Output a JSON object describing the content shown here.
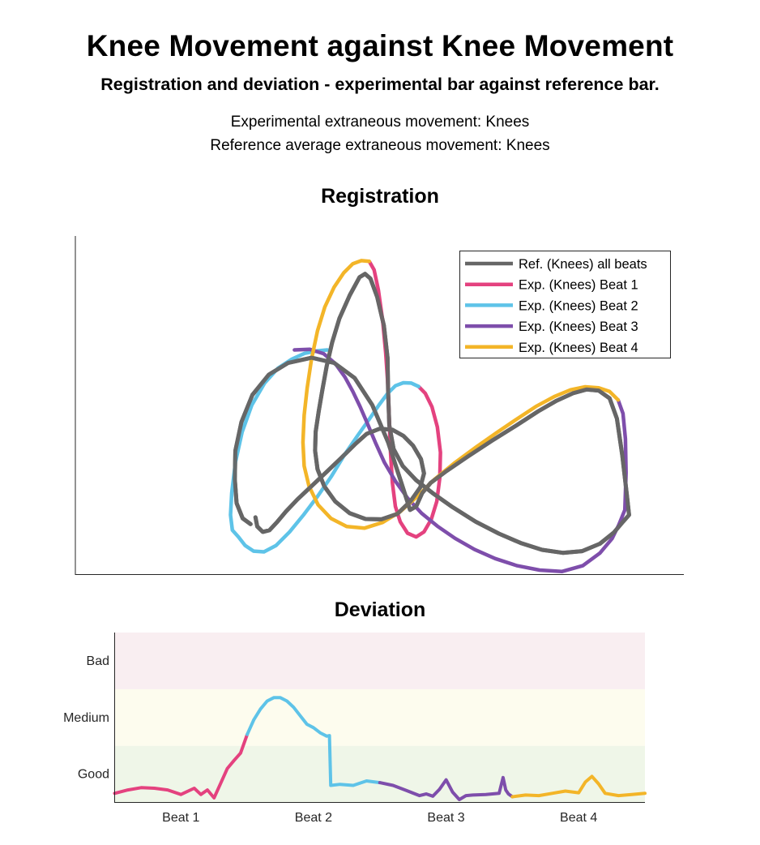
{
  "figure": {
    "title": "Knee Movement against Knee Movement",
    "subtitle": "Registration and deviation - experimental bar against reference bar.",
    "info_experimental": "Experimental extraneous movement: Knees",
    "info_reference": "Reference average extraneous movement: Knees"
  },
  "colors": {
    "reference": "#666666",
    "beat1": "#E4427F",
    "beat2": "#5EC3E8",
    "beat3": "#7E4EAB",
    "beat4": "#F3B528",
    "band_bad": "#F9EEF1",
    "band_medium": "#FDFCEE",
    "band_good": "#EFF6E8"
  },
  "chart_data": [
    {
      "type": "line",
      "title": "Registration",
      "axes_ticks": false,
      "grid": false,
      "legend_position": "top-right",
      "legend": [
        "Ref. (Knees) all beats",
        "Exp. (Knees) Beat 1",
        "Exp. (Knees) Beat 2",
        "Exp. (Knees) Beat 3",
        "Exp. (Knees) Beat 4"
      ],
      "xlim": [
        0,
        100
      ],
      "ylim": [
        0,
        100
      ],
      "series": [
        {
          "name": "Ref. (Knees) all beats",
          "color_key": "reference",
          "points": [
            [
              29.6,
              16.8
            ],
            [
              29.9,
              14.1
            ],
            [
              30.8,
              12.5
            ],
            [
              31.9,
              13.0
            ],
            [
              33.2,
              15.5
            ],
            [
              34.6,
              18.5
            ],
            [
              36.5,
              22.1
            ],
            [
              38.8,
              26.0
            ],
            [
              41.2,
              30.1
            ],
            [
              43.6,
              34.2
            ],
            [
              45.9,
              38.3
            ],
            [
              47.9,
              41.5
            ],
            [
              50.0,
              43.0
            ],
            [
              52.1,
              42.7
            ],
            [
              53.9,
              40.9
            ],
            [
              55.5,
              38.0
            ],
            [
              56.8,
              34.0
            ],
            [
              57.3,
              29.8
            ],
            [
              56.7,
              25.7
            ],
            [
              55.1,
              21.6
            ],
            [
              52.9,
              17.8
            ],
            [
              50.3,
              16.2
            ],
            [
              47.7,
              16.3
            ],
            [
              45.1,
              18.0
            ],
            [
              42.7,
              21.5
            ],
            [
              40.9,
              26.0
            ],
            [
              39.8,
              31.0
            ],
            [
              39.4,
              36.5
            ],
            [
              39.5,
              42.1
            ],
            [
              40.0,
              48.2
            ],
            [
              40.6,
              54.5
            ],
            [
              41.3,
              61.5
            ],
            [
              42.2,
              68.5
            ],
            [
              43.4,
              75.6
            ],
            [
              45.1,
              82.5
            ],
            [
              46.7,
              87.8
            ],
            [
              47.6,
              88.8
            ],
            [
              48.5,
              87.4
            ],
            [
              49.6,
              82.0
            ],
            [
              50.7,
              73.5
            ],
            [
              51.3,
              64.0
            ],
            [
              51.4,
              54.0
            ],
            [
              51.6,
              44.0
            ],
            [
              52.3,
              37.0
            ],
            [
              53.8,
              32.0
            ],
            [
              56.0,
              27.8
            ],
            [
              58.7,
              24.0
            ],
            [
              62.0,
              19.8
            ],
            [
              65.8,
              15.5
            ],
            [
              69.6,
              12.0
            ],
            [
              73.2,
              9.2
            ],
            [
              76.7,
              7.2
            ],
            [
              80.1,
              6.3
            ],
            [
              83.3,
              6.8
            ],
            [
              86.2,
              9.0
            ],
            [
              88.5,
              12.3
            ],
            [
              90.0,
              15.5
            ],
            [
              91.0,
              17.5
            ],
            [
              90.6,
              24.0
            ],
            [
              89.9,
              35.0
            ],
            [
              89.0,
              46.0
            ],
            [
              87.8,
              52.0
            ],
            [
              86.0,
              54.3
            ],
            [
              84.0,
              54.6
            ],
            [
              81.8,
              53.5
            ],
            [
              79.1,
              51.3
            ],
            [
              76.1,
              48.2
            ],
            [
              72.5,
              44.0
            ],
            [
              68.5,
              39.5
            ],
            [
              64.5,
              34.8
            ],
            [
              61.0,
              30.5
            ],
            [
              58.4,
              27.0
            ],
            [
              57.0,
              24.0
            ],
            [
              56.0,
              20.0
            ],
            [
              55.0,
              19.0
            ],
            [
              53.4,
              28.0
            ],
            [
              51.4,
              39.0
            ],
            [
              48.8,
              50.0
            ],
            [
              45.9,
              58.0
            ],
            [
              42.5,
              62.5
            ],
            [
              38.8,
              64.0
            ],
            [
              35.0,
              62.5
            ],
            [
              31.8,
              59.0
            ],
            [
              29.1,
              53.0
            ],
            [
              27.3,
              45.0
            ],
            [
              26.3,
              36.5
            ],
            [
              26.2,
              28.0
            ],
            [
              26.5,
              21.0
            ],
            [
              27.5,
              16.5
            ],
            [
              28.8,
              14.8
            ]
          ]
        },
        {
          "name": "Exp. (Knees) Beat 1",
          "color_key": "beat1",
          "points": [
            [
              48.3,
              92.5
            ],
            [
              49.1,
              90.0
            ],
            [
              49.8,
              84.0
            ],
            [
              50.5,
              75.0
            ],
            [
              51.0,
              65.5
            ],
            [
              51.4,
              55.0
            ],
            [
              51.6,
              45.0
            ],
            [
              51.8,
              36.0
            ],
            [
              52.1,
              27.0
            ],
            [
              52.6,
              20.0
            ],
            [
              53.4,
              15.5
            ],
            [
              54.6,
              12.1
            ],
            [
              56.0,
              11.0
            ],
            [
              57.3,
              12.5
            ],
            [
              58.5,
              16.2
            ],
            [
              59.4,
              21.5
            ],
            [
              59.9,
              28.5
            ],
            [
              60.0,
              36.0
            ],
            [
              59.5,
              43.5
            ],
            [
              58.6,
              49.5
            ],
            [
              57.5,
              53.5
            ],
            [
              56.4,
              55.5
            ]
          ]
        },
        {
          "name": "Exp. (Knees) Beat 2",
          "color_key": "beat2",
          "points": [
            [
              56.4,
              55.5
            ],
            [
              55.2,
              56.5
            ],
            [
              53.9,
              56.6
            ],
            [
              52.6,
              55.7
            ],
            [
              51.3,
              53.4
            ],
            [
              49.9,
              50.0
            ],
            [
              48.3,
              45.8
            ],
            [
              46.4,
              41.0
            ],
            [
              44.3,
              35.5
            ],
            [
              42.1,
              29.0
            ],
            [
              39.8,
              23.0
            ],
            [
              37.5,
              17.5
            ],
            [
              35.2,
              12.5
            ],
            [
              33.0,
              8.5
            ],
            [
              31.0,
              6.6
            ],
            [
              29.3,
              6.8
            ],
            [
              27.9,
              8.5
            ],
            [
              26.8,
              11.0
            ],
            [
              25.8,
              13.0
            ],
            [
              25.5,
              17.5
            ],
            [
              25.7,
              24.0
            ],
            [
              26.3,
              33.0
            ],
            [
              27.4,
              42.0
            ],
            [
              29.0,
              50.0
            ],
            [
              31.1,
              56.5
            ],
            [
              33.3,
              60.9
            ],
            [
              35.6,
              63.6
            ],
            [
              37.7,
              65.3
            ],
            [
              39.7,
              66.0
            ],
            [
              41.4,
              66.3
            ]
          ]
        },
        {
          "name": "Exp. (Knees) Beat 3",
          "color_key": "beat3",
          "points": [
            [
              36.0,
              66.3
            ],
            [
              38.5,
              66.5
            ],
            [
              40.8,
              65.2
            ],
            [
              42.7,
              62.3
            ],
            [
              44.3,
              58.3
            ],
            [
              45.6,
              54.0
            ],
            [
              46.8,
              49.5
            ],
            [
              48.0,
              44.5
            ],
            [
              49.3,
              39.0
            ],
            [
              50.8,
              33.0
            ],
            [
              52.6,
              27.5
            ],
            [
              54.6,
              22.5
            ],
            [
              56.9,
              18.0
            ],
            [
              59.5,
              14.2
            ],
            [
              62.4,
              10.6
            ],
            [
              65.6,
              7.3
            ],
            [
              69.0,
              4.6
            ],
            [
              72.6,
              2.5
            ],
            [
              76.3,
              1.2
            ],
            [
              80.0,
              0.8
            ],
            [
              83.4,
              2.5
            ],
            [
              86.2,
              6.2
            ],
            [
              88.2,
              10.5
            ],
            [
              89.3,
              14.5
            ],
            [
              90.3,
              19.0
            ],
            [
              90.5,
              30.0
            ],
            [
              90.4,
              40.0
            ],
            [
              90.0,
              47.5
            ],
            [
              89.2,
              51.5
            ]
          ]
        },
        {
          "name": "Exp. (Knees) Beat 4",
          "color_key": "beat4",
          "points": [
            [
              89.2,
              51.5
            ],
            [
              87.8,
              54.0
            ],
            [
              86.0,
              55.1
            ],
            [
              83.8,
              55.4
            ],
            [
              81.4,
              54.5
            ],
            [
              78.7,
              52.5
            ],
            [
              75.7,
              49.6
            ],
            [
              72.5,
              45.8
            ],
            [
              69.2,
              41.8
            ],
            [
              65.8,
              37.5
            ],
            [
              62.4,
              33.0
            ],
            [
              59.0,
              28.0
            ],
            [
              56.2,
              23.0
            ],
            [
              53.4,
              18.5
            ],
            [
              50.5,
              15.3
            ],
            [
              47.5,
              13.6
            ],
            [
              44.6,
              14.1
            ],
            [
              42.0,
              16.5
            ],
            [
              39.9,
              20.5
            ],
            [
              38.4,
              26.0
            ],
            [
              37.6,
              32.0
            ],
            [
              37.4,
              39.0
            ],
            [
              37.6,
              47.0
            ],
            [
              38.1,
              55.0
            ],
            [
              38.8,
              63.5
            ],
            [
              39.8,
              72.0
            ],
            [
              41.0,
              79.0
            ],
            [
              42.5,
              84.8
            ],
            [
              44.1,
              89.1
            ],
            [
              45.6,
              91.8
            ],
            [
              47.0,
              92.7
            ],
            [
              48.3,
              92.5
            ]
          ]
        }
      ]
    },
    {
      "type": "line",
      "title": "Deviation",
      "xlabel": "",
      "ylabel": "",
      "categories": [
        "Beat 1",
        "Beat 2",
        "Beat 3",
        "Beat 4"
      ],
      "y_categories": [
        "Good",
        "Medium",
        "Bad"
      ],
      "bands": [
        "Good",
        "Medium",
        "Bad"
      ],
      "xlim": [
        0,
        4
      ],
      "ylim": [
        0,
        3
      ],
      "series": [
        {
          "name": "Beat 1",
          "color_key": "beat1",
          "x": [
            0.0,
            0.1,
            0.2,
            0.3,
            0.4,
            0.5,
            0.6,
            0.65,
            0.7,
            0.75,
            0.8,
            0.85,
            0.9,
            0.95,
            1.0
          ],
          "y": [
            0.16,
            0.22,
            0.26,
            0.25,
            0.22,
            0.14,
            0.25,
            0.14,
            0.22,
            0.08,
            0.34,
            0.6,
            0.74,
            0.87,
            1.2
          ]
        },
        {
          "name": "Beat 2",
          "color_key": "beat2",
          "x": [
            1.0,
            1.05,
            1.1,
            1.15,
            1.2,
            1.25,
            1.3,
            1.35,
            1.4,
            1.45,
            1.5,
            1.55,
            1.6,
            1.62,
            1.63,
            1.7,
            1.8,
            1.9,
            2.0
          ],
          "y": [
            1.2,
            1.46,
            1.65,
            1.79,
            1.85,
            1.85,
            1.79,
            1.68,
            1.53,
            1.38,
            1.32,
            1.23,
            1.17,
            1.18,
            0.3,
            0.32,
            0.3,
            0.38,
            0.35
          ]
        },
        {
          "name": "Beat 3",
          "color_key": "beat3",
          "x": [
            2.0,
            2.1,
            2.2,
            2.3,
            2.35,
            2.4,
            2.45,
            2.5,
            2.55,
            2.6,
            2.65,
            2.7,
            2.8,
            2.9,
            2.93,
            2.95,
            2.97,
            3.0
          ],
          "y": [
            0.35,
            0.3,
            0.21,
            0.12,
            0.15,
            0.11,
            0.23,
            0.4,
            0.18,
            0.05,
            0.12,
            0.13,
            0.14,
            0.16,
            0.44,
            0.22,
            0.15,
            0.1
          ]
        },
        {
          "name": "Beat 4",
          "color_key": "beat4",
          "x": [
            3.0,
            3.1,
            3.2,
            3.3,
            3.4,
            3.5,
            3.55,
            3.6,
            3.65,
            3.7,
            3.8,
            3.9,
            4.0
          ],
          "y": [
            0.1,
            0.13,
            0.12,
            0.16,
            0.2,
            0.17,
            0.36,
            0.46,
            0.33,
            0.16,
            0.12,
            0.14,
            0.16
          ]
        }
      ]
    }
  ]
}
